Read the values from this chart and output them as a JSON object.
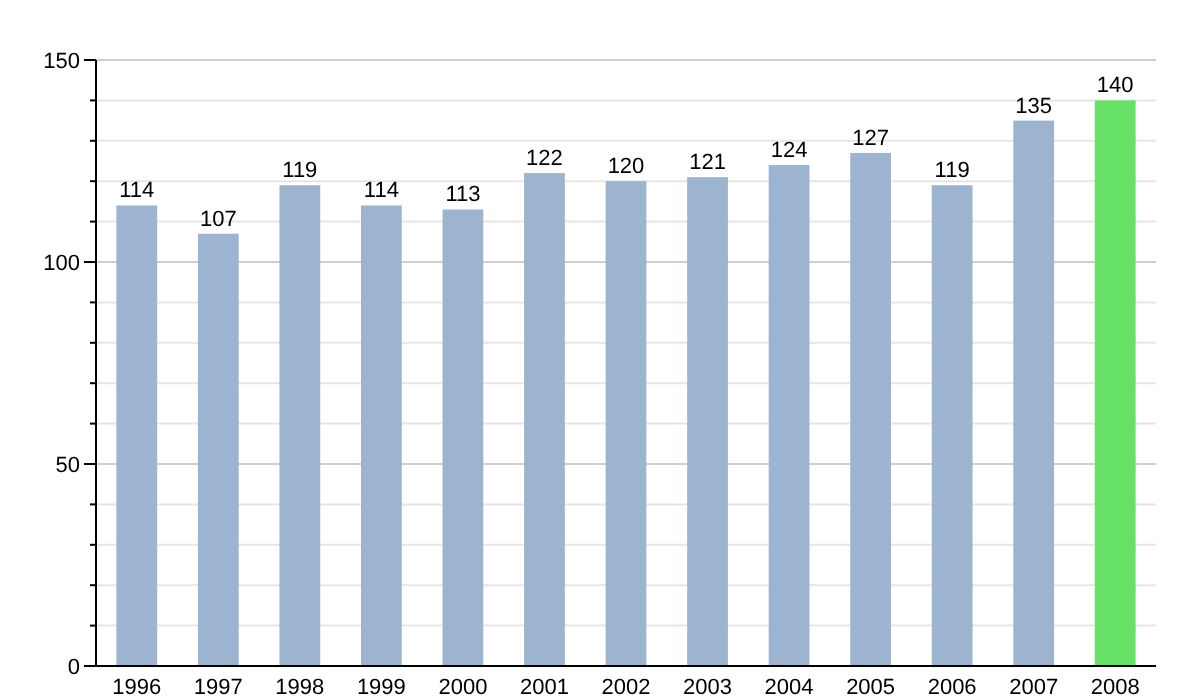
{
  "chart_data": {
    "type": "bar",
    "categories": [
      "1996",
      "1997",
      "1998",
      "1999",
      "2000",
      "2001",
      "2002",
      "2003",
      "2004",
      "2005",
      "2006",
      "2007",
      "2008"
    ],
    "values": [
      114,
      107,
      119,
      114,
      113,
      122,
      120,
      121,
      124,
      127,
      119,
      135,
      140
    ],
    "colors": [
      "#9cb4cf",
      "#9cb4cf",
      "#9cb4cf",
      "#9cb4cf",
      "#9cb4cf",
      "#9cb4cf",
      "#9cb4cf",
      "#9cb4cf",
      "#9cb4cf",
      "#9cb4cf",
      "#9cb4cf",
      "#9cb4cf",
      "#66e066"
    ],
    "ylim": [
      0,
      150
    ],
    "yticks": [
      0,
      {
        "value": 10,
        "label": null
      },
      {
        "value": 20,
        "label": null
      },
      {
        "value": 30,
        "label": null
      },
      {
        "value": 40,
        "label": null
      },
      50,
      {
        "value": 60,
        "label": null
      },
      {
        "value": 70,
        "label": null
      },
      {
        "value": 80,
        "label": null
      },
      {
        "value": 90,
        "label": null
      },
      100,
      {
        "value": 110,
        "label": null
      },
      {
        "value": 120,
        "label": null
      },
      {
        "value": 130,
        "label": null
      },
      {
        "value": 140,
        "label": null
      },
      150
    ],
    "grid": "y",
    "data_labels": true
  }
}
